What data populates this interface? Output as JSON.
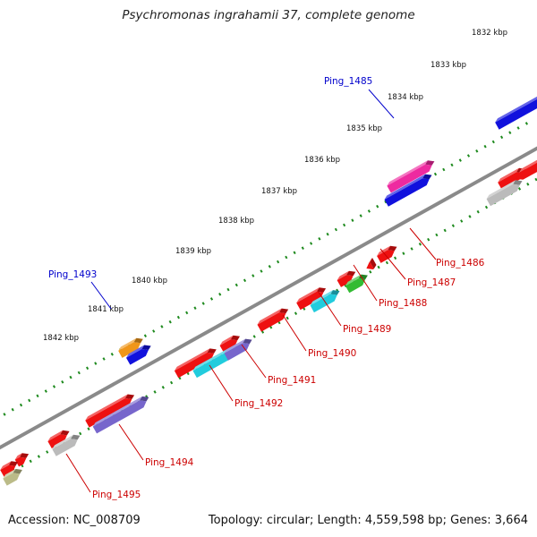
{
  "title": "Psychromonas ingrahamii 37, complete genome",
  "footer": {
    "accession": "Accession: NC_008709",
    "summary": "Topology: circular; Length: 4,559,598 bp; Genes: 3,664"
  },
  "ticks": [
    {
      "label": "1832 kbp"
    },
    {
      "label": "1833 kbp"
    },
    {
      "label": "1834 kbp"
    },
    {
      "label": "1835 kbp"
    },
    {
      "label": "1836 kbp"
    },
    {
      "label": "1837 kbp"
    },
    {
      "label": "1838 kbp"
    },
    {
      "label": "1839 kbp"
    },
    {
      "label": "1840 kbp"
    },
    {
      "label": "1841 kbp"
    },
    {
      "label": "1842 kbp"
    }
  ],
  "gene_labels": [
    {
      "text": "Ping_1485",
      "color": "#0000cc"
    },
    {
      "text": "Ping_1493",
      "color": "#0000cc"
    },
    {
      "text": "Ping_1486",
      "color": "#cc0000"
    },
    {
      "text": "Ping_1487",
      "color": "#cc0000"
    },
    {
      "text": "Ping_1488",
      "color": "#cc0000"
    },
    {
      "text": "Ping_1489",
      "color": "#cc0000"
    },
    {
      "text": "Ping_1490",
      "color": "#cc0000"
    },
    {
      "text": "Ping_1491",
      "color": "#cc0000"
    },
    {
      "text": "Ping_1492",
      "color": "#cc0000"
    },
    {
      "text": "Ping_1494",
      "color": "#cc0000"
    },
    {
      "text": "Ping_1495",
      "color": "#cc0000"
    }
  ],
  "colors": {
    "backbone": "#8a8a8a",
    "tick_dots": "#1e8a1e",
    "red": "#ee1111",
    "blue": "#1111dd",
    "magenta": "#ee2aa0",
    "orange": "#f0961a",
    "green": "#33bb33",
    "cyan": "#22ccdd",
    "purple": "#7766cc",
    "gray": "#bbbbbb",
    "olive": "#bbbb88"
  }
}
